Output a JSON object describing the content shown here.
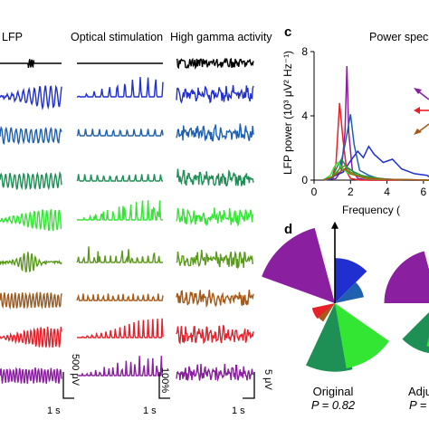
{
  "panel_labels": {
    "c": "c",
    "d": "d"
  },
  "columns": {
    "lfp": "LFP",
    "optical": "Optical stimulation",
    "gamma": "High gamma activity"
  },
  "power_title": "Power spec",
  "scalebars": {
    "lfp_amp": "500 μV",
    "optical_amp": "100%",
    "gamma_amp": "5 μV",
    "time": "1 s"
  },
  "rose": {
    "original": {
      "label": "Original",
      "p": "P = 0.82"
    },
    "adjusted": {
      "label": "Adju",
      "p": "P ="
    }
  },
  "colors": {
    "traces": [
      "#000000",
      "#1f2fd0",
      "#2060b0",
      "#1e8f55",
      "#33e633",
      "#5a9a1a",
      "#a65a1a",
      "#e8202a",
      "#8a1fa0"
    ]
  },
  "chart_data": [
    {
      "type": "line",
      "title": "",
      "xlabel": "Frequency (",
      "ylabel": "LFP power (10³ μV² Hz⁻¹)",
      "xlim": [
        0,
        7
      ],
      "ylim": [
        0,
        8
      ],
      "xticks": [
        "0",
        "2",
        "4",
        "6"
      ],
      "yticks": [
        "0",
        "4",
        "8"
      ],
      "grid": false,
      "series": [
        {
          "color": "#8a1fa0",
          "x": [
            0.5,
            1.2,
            1.5,
            1.7,
            1.8,
            1.9,
            2.1,
            2.4,
            3.0,
            4.0,
            6.0,
            7.0
          ],
          "y": [
            0,
            0.1,
            0.6,
            3.0,
            7.1,
            3.0,
            0.6,
            0.1,
            0,
            0,
            0,
            0
          ]
        },
        {
          "color": "#e8202a",
          "x": [
            0.5,
            1.0,
            1.2,
            1.4,
            1.6,
            1.8,
            2.0,
            2.5,
            3.0,
            5.0,
            7.0
          ],
          "y": [
            0,
            0.2,
            1.0,
            4.8,
            2.4,
            0.5,
            0.1,
            0,
            0,
            0,
            0
          ]
        },
        {
          "color": "#2060b0",
          "x": [
            0.5,
            1.0,
            1.4,
            1.7,
            2.0,
            2.2,
            2.5,
            3.0,
            3.5,
            5.0,
            7.0
          ],
          "y": [
            0,
            0.1,
            0.7,
            2.2,
            4.1,
            2.2,
            0.6,
            0.3,
            0.1,
            0,
            0
          ]
        },
        {
          "color": "#1f2fd0",
          "x": [
            0.5,
            1.0,
            1.6,
            2.0,
            2.4,
            2.7,
            3.0,
            3.3,
            3.8,
            4.3,
            4.8,
            5.5,
            6.2,
            7.0
          ],
          "y": [
            0,
            0.2,
            0.5,
            1.2,
            1.8,
            1.4,
            2.1,
            1.6,
            1.1,
            1.3,
            0.7,
            0.4,
            0.3,
            0.2
          ]
        },
        {
          "color": "#1e8f55",
          "x": [
            0.5,
            1.0,
            1.3,
            1.5,
            1.8,
            2.2,
            2.6,
            3.0,
            4.0,
            7.0
          ],
          "y": [
            0,
            0.2,
            0.9,
            1.3,
            0.8,
            0.5,
            0.3,
            0.2,
            0.05,
            0
          ]
        },
        {
          "color": "#33e633",
          "x": [
            0.5,
            0.9,
            1.1,
            1.3,
            1.6,
            1.9,
            2.3,
            2.8,
            3.5,
            7.0
          ],
          "y": [
            0,
            0.3,
            0.8,
            1.1,
            0.7,
            0.4,
            0.3,
            0.1,
            0.05,
            0
          ]
        },
        {
          "color": "#5a9a1a",
          "x": [
            0.5,
            1.0,
            1.4,
            1.7,
            2.0,
            2.4,
            3.0,
            4.0,
            7.0
          ],
          "y": [
            0,
            0.2,
            0.7,
            0.9,
            0.5,
            0.3,
            0.15,
            0.05,
            0
          ]
        },
        {
          "color": "#a65a1a",
          "x": [
            0.5,
            1.0,
            1.4,
            1.7,
            2.0,
            2.5,
            3.0,
            4.0,
            7.0
          ],
          "y": [
            0,
            0.2,
            0.5,
            0.7,
            0.4,
            0.2,
            0.1,
            0.05,
            0
          ]
        }
      ]
    },
    {
      "type": "polar-rose",
      "label": "Original",
      "note": "P = 0.82",
      "wedges": [
        {
          "color": "#8a1fa0",
          "start_deg": 290,
          "end_deg": 345,
          "radius": 1.0
        },
        {
          "color": "#1f2fd0",
          "start_deg": 0,
          "end_deg": 45,
          "radius": 0.58
        },
        {
          "color": "#2060b0",
          "start_deg": 45,
          "end_deg": 78,
          "radius": 0.38
        },
        {
          "color": "#1e8f55",
          "start_deg": 165,
          "end_deg": 205,
          "radius": 0.88
        },
        {
          "color": "#33e633",
          "start_deg": 125,
          "end_deg": 170,
          "radius": 0.85
        },
        {
          "color": "#e8202a",
          "start_deg": 228,
          "end_deg": 258,
          "radius": 0.3
        },
        {
          "color": "#a65a1a",
          "start_deg": 212,
          "end_deg": 230,
          "radius": 0.28
        }
      ],
      "arrow_deg": 0
    },
    {
      "type": "polar-rose",
      "label": "Adju",
      "wedges": [
        {
          "color": "#8a1fa0",
          "start_deg": 270,
          "end_deg": 345,
          "radius": 0.85
        },
        {
          "color": "#1e8f55",
          "start_deg": 185,
          "end_deg": 225,
          "radius": 0.8
        },
        {
          "color": "#33e633",
          "start_deg": 165,
          "end_deg": 195,
          "radius": 0.7
        }
      ],
      "arrow_deg": 0
    }
  ]
}
